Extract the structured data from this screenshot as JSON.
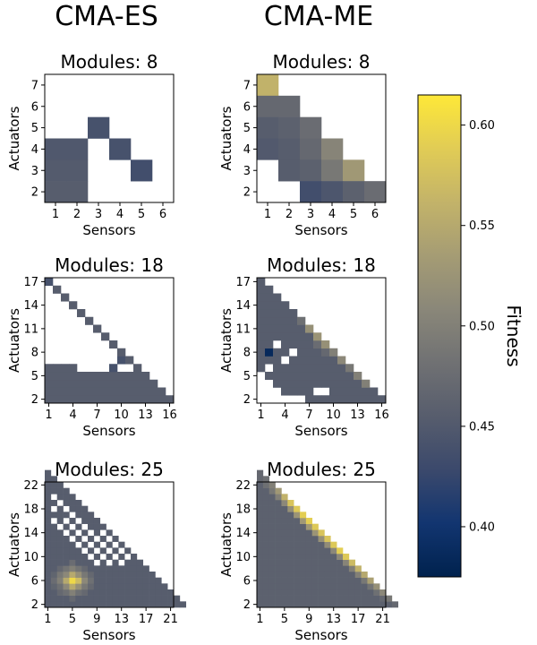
{
  "column_titles": [
    "CMA-ES",
    "CMA-ME"
  ],
  "colorbar": {
    "label": "Fitness",
    "min": 0.375,
    "max": 0.615,
    "ticks": [
      "0.40",
      "0.45",
      "0.50",
      "0.55",
      "0.60"
    ],
    "tick_values": [
      0.4,
      0.45,
      0.5,
      0.55,
      0.6
    ],
    "colormap": "cividis",
    "colors": [
      "#00224e",
      "#123570",
      "#3b496c",
      "#575d6d",
      "#707173",
      "#8a8779",
      "#a59c74",
      "#c3b369",
      "#e1cc55",
      "#fee838"
    ]
  },
  "chart_data": [
    {
      "type": "heatmap",
      "panel": "CMA-ES",
      "title": "Modules: 8",
      "xlabel": "Sensors",
      "ylabel": "Actuators",
      "xticks": [
        "1",
        "2",
        "3",
        "4",
        "5",
        "6"
      ],
      "yticks": [
        "2",
        "3",
        "4",
        "5",
        "6",
        "7"
      ],
      "cells": [
        {
          "x": 1,
          "y": 2,
          "v": 0.455
        },
        {
          "x": 2,
          "y": 2,
          "v": 0.455
        },
        {
          "x": 1,
          "y": 3,
          "v": 0.452
        },
        {
          "x": 2,
          "y": 3,
          "v": 0.452
        },
        {
          "x": 1,
          "y": 4,
          "v": 0.448
        },
        {
          "x": 2,
          "y": 4,
          "v": 0.448
        },
        {
          "x": 3,
          "y": 5,
          "v": 0.44
        },
        {
          "x": 4,
          "y": 4,
          "v": 0.44
        },
        {
          "x": 5,
          "y": 3,
          "v": 0.435
        }
      ]
    },
    {
      "type": "heatmap",
      "panel": "CMA-ME",
      "title": "Modules: 8",
      "xlabel": "Sensors",
      "ylabel": "Actuators",
      "xticks": [
        "1",
        "2",
        "3",
        "4",
        "5",
        "6"
      ],
      "yticks": [
        "2",
        "3",
        "4",
        "5",
        "6",
        "7"
      ],
      "cells": [
        {
          "x": 1,
          "y": 7,
          "v": 0.56
        },
        {
          "x": 1,
          "y": 6,
          "v": 0.47
        },
        {
          "x": 2,
          "y": 6,
          "v": 0.47
        },
        {
          "x": 1,
          "y": 5,
          "v": 0.455
        },
        {
          "x": 2,
          "y": 5,
          "v": 0.46
        },
        {
          "x": 3,
          "y": 5,
          "v": 0.475
        },
        {
          "x": 1,
          "y": 4,
          "v": 0.45
        },
        {
          "x": 2,
          "y": 4,
          "v": 0.455
        },
        {
          "x": 3,
          "y": 4,
          "v": 0.47
        },
        {
          "x": 4,
          "y": 4,
          "v": 0.505
        },
        {
          "x": 2,
          "y": 3,
          "v": 0.455
        },
        {
          "x": 3,
          "y": 3,
          "v": 0.46
        },
        {
          "x": 4,
          "y": 3,
          "v": 0.49
        },
        {
          "x": 5,
          "y": 3,
          "v": 0.53
        },
        {
          "x": 3,
          "y": 2,
          "v": 0.435
        },
        {
          "x": 4,
          "y": 2,
          "v": 0.445
        },
        {
          "x": 5,
          "y": 2,
          "v": 0.46
        },
        {
          "x": 6,
          "y": 2,
          "v": 0.475
        }
      ]
    },
    {
      "type": "heatmap",
      "panel": "CMA-ES",
      "title": "Modules: 18",
      "xlabel": "Sensors",
      "ylabel": "Actuators",
      "xticks": [
        "1",
        "4",
        "7",
        "10",
        "13",
        "16"
      ],
      "yticks": [
        "2",
        "5",
        "8",
        "11",
        "14",
        "17"
      ],
      "grid_size": 16,
      "shape": "lower-triangle",
      "base_value": 0.455,
      "missing": [
        [
          1,
          7
        ],
        [
          1,
          8
        ],
        [
          1,
          9
        ],
        [
          1,
          10
        ],
        [
          1,
          11
        ],
        [
          1,
          12
        ],
        [
          1,
          13
        ],
        [
          1,
          14
        ],
        [
          1,
          15
        ],
        [
          1,
          16
        ],
        [
          2,
          7
        ],
        [
          2,
          8
        ],
        [
          2,
          9
        ],
        [
          2,
          10
        ],
        [
          2,
          11
        ],
        [
          2,
          12
        ],
        [
          2,
          13
        ],
        [
          2,
          14
        ],
        [
          2,
          15
        ],
        [
          3,
          7
        ],
        [
          3,
          8
        ],
        [
          3,
          9
        ],
        [
          3,
          10
        ],
        [
          3,
          11
        ],
        [
          3,
          12
        ],
        [
          3,
          13
        ],
        [
          3,
          14
        ],
        [
          4,
          7
        ],
        [
          4,
          8
        ],
        [
          4,
          9
        ],
        [
          4,
          10
        ],
        [
          4,
          11
        ],
        [
          4,
          12
        ],
        [
          4,
          13
        ],
        [
          5,
          7
        ],
        [
          5,
          8
        ],
        [
          5,
          9
        ],
        [
          5,
          10
        ],
        [
          5,
          11
        ],
        [
          5,
          12
        ],
        [
          6,
          7
        ],
        [
          6,
          8
        ],
        [
          6,
          9
        ],
        [
          6,
          10
        ],
        [
          6,
          11
        ],
        [
          7,
          7
        ],
        [
          7,
          8
        ],
        [
          7,
          9
        ],
        [
          7,
          10
        ],
        [
          8,
          7
        ],
        [
          8,
          8
        ],
        [
          8,
          9
        ],
        [
          9,
          7
        ],
        [
          9,
          8
        ],
        [
          5,
          6
        ],
        [
          6,
          6
        ],
        [
          7,
          6
        ],
        [
          8,
          6
        ],
        [
          10,
          6
        ],
        [
          11,
          6
        ]
      ],
      "overrides": [
        {
          "x": 1,
          "y": 17,
          "v": 0.44
        },
        {
          "x": 9,
          "y": 6,
          "v": 0.44
        },
        {
          "x": 10,
          "y": 7,
          "v": 0.44
        }
      ]
    },
    {
      "type": "heatmap",
      "panel": "CMA-ME",
      "title": "Modules: 18",
      "xlabel": "Sensors",
      "ylabel": "Actuators",
      "xticks": [
        "1",
        "4",
        "7",
        "10",
        "13",
        "16"
      ],
      "yticks": [
        "2",
        "5",
        "8",
        "11",
        "14",
        "17"
      ],
      "grid_size": 16,
      "shape": "lower-triangle",
      "base_value": 0.455,
      "missing": [
        [
          1,
          2
        ],
        [
          1,
          3
        ],
        [
          1,
          4
        ],
        [
          1,
          5
        ],
        [
          2,
          2
        ],
        [
          2,
          3
        ],
        [
          2,
          4
        ],
        [
          3,
          2
        ],
        [
          3,
          3
        ],
        [
          4,
          2
        ],
        [
          4,
          7
        ],
        [
          5,
          8
        ],
        [
          2,
          6
        ],
        [
          3,
          9
        ],
        [
          5,
          2
        ],
        [
          6,
          2
        ],
        [
          8,
          3
        ],
        [
          9,
          3
        ]
      ],
      "overrides": [
        {
          "x": 2,
          "y": 8,
          "v": 0.385
        },
        {
          "x": 7,
          "y": 11,
          "v": 0.52
        },
        {
          "x": 8,
          "y": 10,
          "v": 0.525
        },
        {
          "x": 9,
          "y": 9,
          "v": 0.52
        },
        {
          "x": 10,
          "y": 8,
          "v": 0.5
        },
        {
          "x": 11,
          "y": 7,
          "v": 0.51
        },
        {
          "x": 12,
          "y": 6,
          "v": 0.49
        },
        {
          "x": 13,
          "y": 5,
          "v": 0.5
        },
        {
          "x": 14,
          "y": 4,
          "v": 0.5
        },
        {
          "x": 6,
          "y": 12,
          "v": 0.48
        },
        {
          "x": 8,
          "y": 9,
          "v": 0.475
        },
        {
          "x": 9,
          "y": 8,
          "v": 0.47
        }
      ]
    },
    {
      "type": "heatmap",
      "panel": "CMA-ES",
      "title": "Modules: 25",
      "xlabel": "Sensors",
      "ylabel": "Actuators",
      "xticks": [
        "1",
        "5",
        "9",
        "13",
        "17",
        "21"
      ],
      "yticks": [
        "2",
        "6",
        "10",
        "14",
        "18",
        "22"
      ],
      "grid_size": 23,
      "shape": "lower-triangle",
      "base_value": 0.455,
      "missing": [
        [
          2,
          20
        ],
        [
          3,
          19
        ],
        [
          2,
          18
        ],
        [
          4,
          18
        ],
        [
          5,
          17
        ],
        [
          2,
          16
        ],
        [
          4,
          16
        ],
        [
          6,
          16
        ],
        [
          3,
          15
        ],
        [
          5,
          15
        ],
        [
          7,
          15
        ],
        [
          4,
          14
        ],
        [
          6,
          14
        ],
        [
          8,
          14
        ],
        [
          10,
          14
        ],
        [
          5,
          13
        ],
        [
          7,
          13
        ],
        [
          9,
          13
        ],
        [
          11,
          13
        ],
        [
          6,
          12
        ],
        [
          8,
          12
        ],
        [
          10,
          12
        ],
        [
          12,
          12
        ],
        [
          7,
          11
        ],
        [
          9,
          11
        ],
        [
          11,
          11
        ],
        [
          13,
          11
        ],
        [
          8,
          10
        ],
        [
          10,
          10
        ],
        [
          12,
          10
        ],
        [
          14,
          10
        ],
        [
          9,
          9
        ],
        [
          11,
          9
        ],
        [
          13,
          9
        ]
      ],
      "overrides": [
        {
          "x": 5,
          "y": 6,
          "v": 0.6
        },
        {
          "x": 6,
          "y": 6,
          "v": 0.57
        },
        {
          "x": 4,
          "y": 6,
          "v": 0.55
        },
        {
          "x": 5,
          "y": 7,
          "v": 0.55
        },
        {
          "x": 5,
          "y": 5,
          "v": 0.55
        },
        {
          "x": 6,
          "y": 7,
          "v": 0.52
        },
        {
          "x": 4,
          "y": 7,
          "v": 0.51
        },
        {
          "x": 6,
          "y": 5,
          "v": 0.52
        },
        {
          "x": 4,
          "y": 5,
          "v": 0.51
        },
        {
          "x": 3,
          "y": 6,
          "v": 0.5
        },
        {
          "x": 7,
          "y": 6,
          "v": 0.51
        },
        {
          "x": 5,
          "y": 8,
          "v": 0.5
        },
        {
          "x": 5,
          "y": 4,
          "v": 0.5
        },
        {
          "x": 7,
          "y": 7,
          "v": 0.49
        },
        {
          "x": 3,
          "y": 7,
          "v": 0.49
        },
        {
          "x": 7,
          "y": 5,
          "v": 0.49
        },
        {
          "x": 3,
          "y": 5,
          "v": 0.48
        },
        {
          "x": 4,
          "y": 8,
          "v": 0.485
        },
        {
          "x": 6,
          "y": 8,
          "v": 0.485
        },
        {
          "x": 4,
          "y": 4,
          "v": 0.48
        },
        {
          "x": 6,
          "y": 4,
          "v": 0.48
        },
        {
          "x": 8,
          "y": 6,
          "v": 0.48
        },
        {
          "x": 2,
          "y": 6,
          "v": 0.475
        },
        {
          "x": 5,
          "y": 9,
          "v": 0.475
        },
        {
          "x": 5,
          "y": 3,
          "v": 0.47
        },
        {
          "x": 3,
          "y": 8,
          "v": 0.47
        },
        {
          "x": 7,
          "y": 8,
          "v": 0.47
        },
        {
          "x": 3,
          "y": 4,
          "v": 0.47
        },
        {
          "x": 7,
          "y": 4,
          "v": 0.47
        },
        {
          "x": 8,
          "y": 7,
          "v": 0.47
        },
        {
          "x": 8,
          "y": 5,
          "v": 0.47
        },
        {
          "x": 2,
          "y": 7,
          "v": 0.465
        },
        {
          "x": 2,
          "y": 5,
          "v": 0.465
        }
      ]
    },
    {
      "type": "heatmap",
      "panel": "CMA-ME",
      "title": "Modules: 25",
      "xlabel": "Sensors",
      "ylabel": "Actuators",
      "xticks": [
        "1",
        "5",
        "9",
        "13",
        "17",
        "21"
      ],
      "yticks": [
        "2",
        "6",
        "10",
        "14",
        "18",
        "22"
      ],
      "grid_size": 23,
      "shape": "lower-triangle",
      "base_value": 0.46,
      "diagonal_values": [
        0.47,
        0.48,
        0.5,
        0.53,
        0.56,
        0.58,
        0.585,
        0.59,
        0.59,
        0.585,
        0.58,
        0.58,
        0.585,
        0.59,
        0.585,
        0.57,
        0.56,
        0.55,
        0.54,
        0.52,
        0.51,
        0.49,
        0.47
      ],
      "near_diagonal_values": [
        0.47,
        0.48,
        0.49,
        0.5,
        0.51,
        0.52,
        0.525,
        0.53,
        0.53,
        0.525,
        0.52,
        0.515,
        0.51,
        0.51,
        0.505,
        0.5,
        0.5,
        0.49,
        0.485,
        0.48,
        0.47,
        0.46
      ],
      "missing": [],
      "overrides": []
    }
  ]
}
